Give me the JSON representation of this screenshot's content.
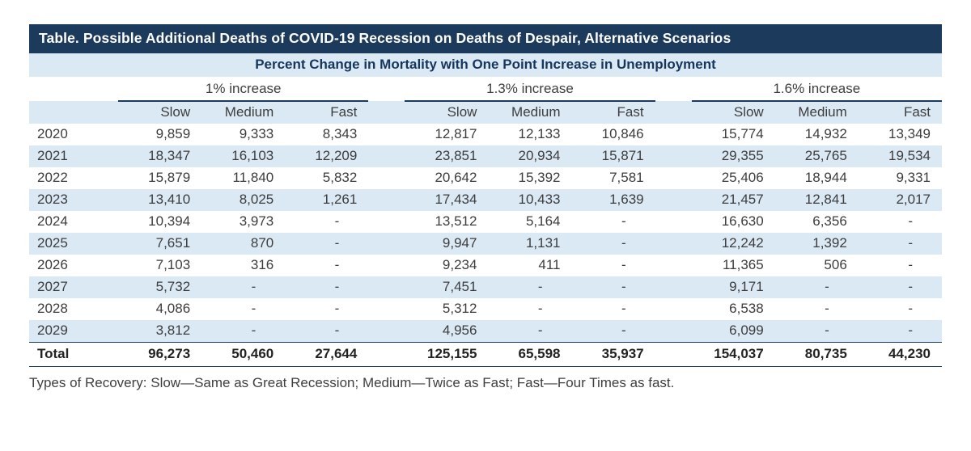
{
  "colors": {
    "header_bar_bg": "#1b3a5c",
    "stripe_bg": "#dbe9f5",
    "subtitle_text": "#17365d",
    "body_text": "#3d3d3d"
  },
  "chart_data": {
    "type": "table",
    "title": "Table. Possible Additional Deaths of COVID-19 Recession on Deaths of Despair, Alternative Scenarios",
    "subtitle": "Percent Change in Mortality with One Point Increase in Unemployment",
    "column_groups": [
      "1% increase",
      "1.3% increase",
      "1.6% increase"
    ],
    "sub_columns": [
      "Slow",
      "Medium",
      "Fast"
    ],
    "row_labels": [
      "2020",
      "2021",
      "2022",
      "2023",
      "2024",
      "2025",
      "2026",
      "2027",
      "2028",
      "2029",
      "Total"
    ],
    "rows": [
      [
        "9,859",
        "9,333",
        "8,343",
        "12,817",
        "12,133",
        "10,846",
        "15,774",
        "14,932",
        "13,349"
      ],
      [
        "18,347",
        "16,103",
        "12,209",
        "23,851",
        "20,934",
        "15,871",
        "29,355",
        "25,765",
        "19,534"
      ],
      [
        "15,879",
        "11,840",
        "5,832",
        "20,642",
        "15,392",
        "7,581",
        "25,406",
        "18,944",
        "9,331"
      ],
      [
        "13,410",
        "8,025",
        "1,261",
        "17,434",
        "10,433",
        "1,639",
        "21,457",
        "12,841",
        "2,017"
      ],
      [
        "10,394",
        "3,973",
        "-",
        "13,512",
        "5,164",
        "-",
        "16,630",
        "6,356",
        "-"
      ],
      [
        "7,651",
        "870",
        "-",
        "9,947",
        "1,131",
        "-",
        "12,242",
        "1,392",
        "-"
      ],
      [
        "7,103",
        "316",
        "-",
        "9,234",
        "411",
        "-",
        "11,365",
        "506",
        "-"
      ],
      [
        "5,732",
        "-",
        "-",
        "7,451",
        "-",
        "-",
        "9,171",
        "-",
        "-"
      ],
      [
        "4,086",
        "-",
        "-",
        "5,312",
        "-",
        "-",
        "6,538",
        "-",
        "-"
      ],
      [
        "3,812",
        "-",
        "-",
        "4,956",
        "-",
        "-",
        "6,099",
        "-",
        "-"
      ],
      [
        "96,273",
        "50,460",
        "27,644",
        "125,155",
        "65,598",
        "35,937",
        "154,037",
        "80,735",
        "44,230"
      ]
    ],
    "footnote": "Types of Recovery: Slow—Same as Great Recession; Medium—Twice as Fast; Fast—Four Times as fast.",
    "layout": {
      "grid": "off",
      "striped_rows": true,
      "group_underline": true
    }
  }
}
